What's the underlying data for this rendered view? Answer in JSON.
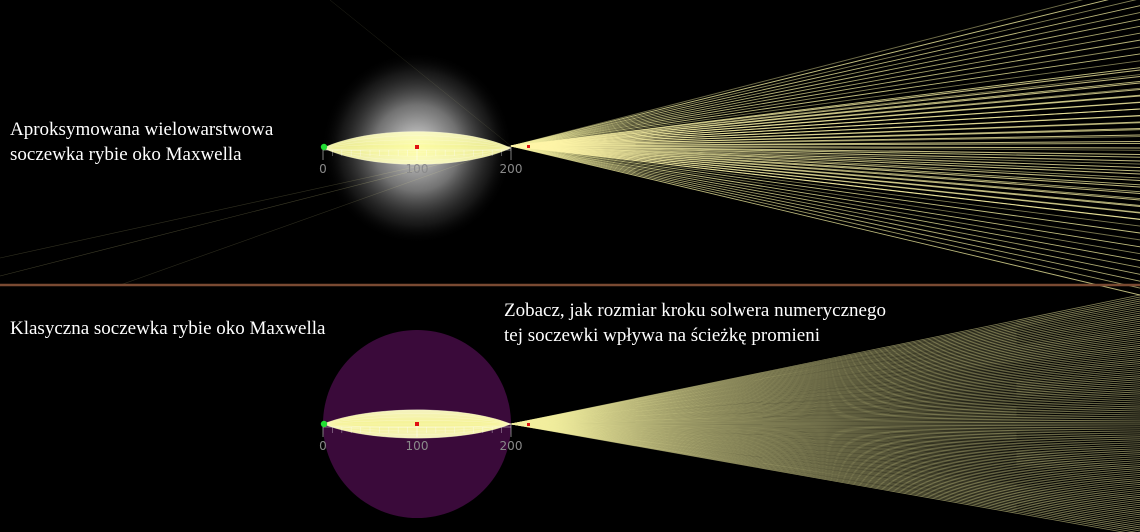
{
  "captions": {
    "top": "Aproksymowana wielowarstwowa\nsoczewka rybie oko Maxwella",
    "bottom": "Klasyczna soczewka rybie oko Maxwella",
    "note": "Zobacz, jak rozmiar kroku solwera numerycznego\ntej soczewki wpływa na ścieżkę promieni"
  },
  "axis": {
    "ticks": [
      "0",
      "100",
      "200"
    ]
  },
  "colors": {
    "background": "#000000",
    "ray": "#f4f0a0",
    "lens_fill": "#ffffb0",
    "source_point": "#22dd33",
    "marker": "#e01010",
    "divider": "#7a4a32",
    "classic_lens_disc": "#3a0a3a",
    "approx_lens_glow": "#ffffff"
  }
}
